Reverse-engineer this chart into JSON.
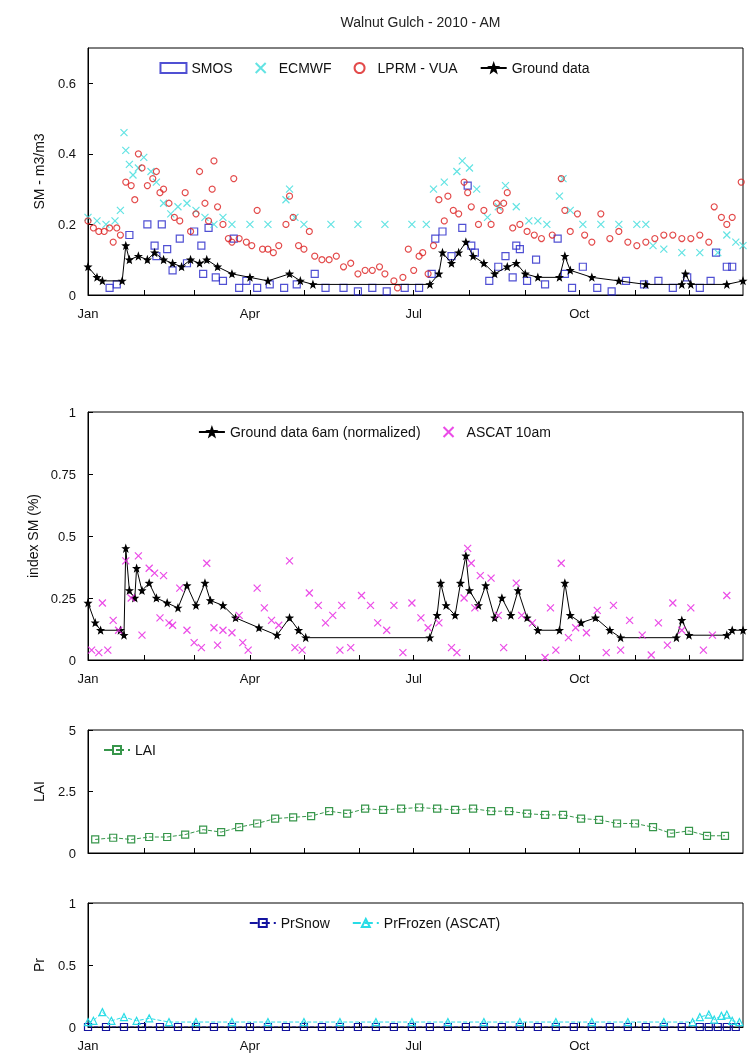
{
  "chart_data": [
    {
      "type": "scatter",
      "title": "Walnut Gulch - 2010 - AM",
      "ylabel": "SM - m3/m3",
      "xlim": [
        "--01-01",
        "--12-31"
      ],
      "xticks": [
        {
          "value": "--01-01",
          "label": "Jan"
        },
        {
          "value": "--02-01",
          "label": null
        },
        {
          "value": "--03-01",
          "label": null
        },
        {
          "value": "--04-01",
          "label": "Apr"
        },
        {
          "value": "--05-01",
          "label": null
        },
        {
          "value": "--06-01",
          "label": null
        },
        {
          "value": "--07-01",
          "label": "Jul"
        },
        {
          "value": "--08-01",
          "label": null
        },
        {
          "value": "--09-01",
          "label": null
        },
        {
          "value": "--10-01",
          "label": "Oct"
        },
        {
          "value": "--11-01",
          "label": null
        },
        {
          "value": "--12-01",
          "label": null
        }
      ],
      "ylim": [
        0,
        0.7
      ],
      "yticks": [
        0,
        0.2,
        0.4,
        0.6
      ],
      "grid": false,
      "legend": "top",
      "series": [
        {
          "name": "SMOS",
          "marker": "square",
          "color": "#2424c8",
          "x": [
            "--01-13",
            "--01-17",
            "--01-24",
            "--02-03",
            "--02-07",
            "--02-08",
            "--02-11",
            "--02-14",
            "--02-17",
            "--02-21",
            "--02-25",
            "--03-01",
            "--03-05",
            "--03-06",
            "--03-09",
            "--03-13",
            "--03-17",
            "--03-23",
            "--03-26",
            "--03-30",
            "--04-05",
            "--04-12",
            "--04-20",
            "--04-27",
            "--05-07",
            "--05-13",
            "--05-23",
            "--05-31",
            "--06-08",
            "--06-16",
            "--06-26",
            "--07-04",
            "--07-11",
            "--07-13",
            "--07-17",
            "--07-22",
            "--07-28",
            "--07-31",
            "--08-02",
            "--08-04",
            "--08-12",
            "--08-17",
            "--08-21",
            "--08-25",
            "--08-27",
            "--08-29",
            "--09-02",
            "--09-07",
            "--09-12",
            "--09-19",
            "--09-23",
            "--09-27",
            "--10-03",
            "--10-11",
            "--10-19",
            "--10-27",
            "--11-06",
            "--11-14",
            "--11-22",
            "--11-30",
            "--12-07",
            "--12-13",
            "--12-16",
            "--12-22",
            "--12-25"
          ],
          "values": [
            0.02,
            0.03,
            0.17,
            0.2,
            0.14,
            0.11,
            0.2,
            0.13,
            0.07,
            0.16,
            0.09,
            0.18,
            0.14,
            0.06,
            0.19,
            0.05,
            0.04,
            0.16,
            0.02,
            0.04,
            0.02,
            0.03,
            0.02,
            0.03,
            0.06,
            0.02,
            0.02,
            0.01,
            0.02,
            0.01,
            0.02,
            0.02,
            0.06,
            0.16,
            0.18,
            0.11,
            0.19,
            0.31,
            0.14,
            0.12,
            0.04,
            0.08,
            0.11,
            0.05,
            0.14,
            0.13,
            0.04,
            0.1,
            0.03,
            0.16,
            0.06,
            0.02,
            0.08,
            0.02,
            0.01,
            0.04,
            0.03,
            0.04,
            0.02,
            0.05,
            0.02,
            0.04,
            0.12,
            0.08,
            0.08
          ]
        },
        {
          "name": "ECMWF",
          "marker": "cross",
          "color": "#3cdcdc",
          "x": [
            "--01-01",
            "--01-06",
            "--01-11",
            "--01-16",
            "--01-19",
            "--01-21",
            "--01-22",
            "--01-24",
            "--01-26",
            "--01-29",
            "--02-01",
            "--02-05",
            "--02-08",
            "--02-12",
            "--02-16",
            "--02-20",
            "--02-25",
            "--03-02",
            "--03-07",
            "--03-12",
            "--03-17",
            "--03-22",
            "--04-01",
            "--04-11",
            "--04-21",
            "--04-23",
            "--04-26",
            "--05-01",
            "--05-16",
            "--05-31",
            "--06-15",
            "--06-30",
            "--07-08",
            "--07-12",
            "--07-18",
            "--07-25",
            "--07-28",
            "--08-01",
            "--08-05",
            "--08-11",
            "--08-17",
            "--08-21",
            "--08-27",
            "--09-03",
            "--09-08",
            "--09-13",
            "--09-20",
            "--09-22",
            "--09-26",
            "--10-03",
            "--10-13",
            "--10-23",
            "--11-02",
            "--11-07",
            "--11-11",
            "--11-17",
            "--11-27",
            "--12-07",
            "--12-17",
            "--12-22",
            "--12-27",
            "--12-31"
          ],
          "values": [
            0.22,
            0.21,
            0.2,
            0.21,
            0.24,
            0.46,
            0.41,
            0.37,
            0.34,
            0.36,
            0.39,
            0.35,
            0.32,
            0.26,
            0.23,
            0.25,
            0.26,
            0.24,
            0.22,
            0.2,
            0.22,
            0.2,
            0.2,
            0.2,
            0.27,
            0.3,
            0.22,
            0.2,
            0.2,
            0.2,
            0.2,
            0.2,
            0.2,
            0.3,
            0.32,
            0.35,
            0.38,
            0.36,
            0.3,
            0.22,
            0.25,
            0.31,
            0.25,
            0.21,
            0.21,
            0.2,
            0.28,
            0.33,
            0.24,
            0.2,
            0.2,
            0.2,
            0.2,
            0.2,
            0.14,
            0.13,
            0.12,
            0.12,
            0.12,
            0.17,
            0.15,
            0.14
          ]
        },
        {
          "name": "LPRM - VUA",
          "marker": "circle",
          "color": "#dc1e1e",
          "x": [
            "--01-01",
            "--01-04",
            "--01-07",
            "--01-10",
            "--01-13",
            "--01-15",
            "--01-17",
            "--01-19",
            "--01-22",
            "--01-25",
            "--01-27",
            "--01-29",
            "--01-31",
            "--02-03",
            "--02-06",
            "--02-08",
            "--02-10",
            "--02-12",
            "--02-15",
            "--02-18",
            "--02-21",
            "--02-24",
            "--02-27",
            "--03-02",
            "--03-04",
            "--03-07",
            "--03-09",
            "--03-11",
            "--03-12",
            "--03-14",
            "--03-17",
            "--03-20",
            "--03-22",
            "--03-23",
            "--03-26",
            "--03-30",
            "--04-02",
            "--04-05",
            "--04-08",
            "--04-11",
            "--04-14",
            "--04-17",
            "--04-21",
            "--04-23",
            "--04-25",
            "--04-28",
            "--05-01",
            "--05-04",
            "--05-07",
            "--05-11",
            "--05-15",
            "--05-19",
            "--05-23",
            "--05-27",
            "--05-31",
            "--06-04",
            "--06-08",
            "--06-12",
            "--06-15",
            "--06-20",
            "--06-22",
            "--06-25",
            "--06-28",
            "--07-01",
            "--07-04",
            "--07-06",
            "--07-09",
            "--07-12",
            "--07-15",
            "--07-18",
            "--07-20",
            "--07-23",
            "--07-26",
            "--07-29",
            "--07-31",
            "--08-02",
            "--08-06",
            "--08-09",
            "--08-13",
            "--08-16",
            "--08-18",
            "--08-20",
            "--08-22",
            "--08-25",
            "--08-29",
            "--09-02",
            "--09-06",
            "--09-10",
            "--09-16",
            "--09-21",
            "--09-23",
            "--09-26",
            "--09-30",
            "--10-04",
            "--10-08",
            "--10-13",
            "--10-18",
            "--10-23",
            "--10-28",
            "--11-02",
            "--11-07",
            "--11-12",
            "--11-17",
            "--11-22",
            "--11-27",
            "--12-02",
            "--12-07",
            "--12-12",
            "--12-15",
            "--12-19",
            "--12-22",
            "--12-25",
            "--12-30"
          ],
          "values": [
            0.21,
            0.19,
            0.18,
            0.18,
            0.19,
            0.15,
            0.19,
            0.17,
            0.32,
            0.31,
            0.27,
            0.4,
            0.36,
            0.31,
            0.33,
            0.35,
            0.29,
            0.3,
            0.26,
            0.22,
            0.21,
            0.29,
            0.18,
            0.23,
            0.35,
            0.26,
            0.21,
            0.3,
            0.38,
            0.25,
            0.2,
            0.16,
            0.15,
            0.33,
            0.16,
            0.15,
            0.14,
            0.24,
            0.13,
            0.13,
            0.12,
            0.14,
            0.2,
            0.28,
            0.22,
            0.14,
            0.13,
            0.18,
            0.11,
            0.1,
            0.1,
            0.11,
            0.08,
            0.09,
            0.06,
            0.07,
            0.07,
            0.08,
            0.06,
            0.04,
            0.02,
            0.05,
            0.13,
            0.07,
            0.11,
            0.12,
            0.06,
            0.14,
            0.27,
            0.21,
            0.28,
            0.24,
            0.23,
            0.32,
            0.29,
            0.25,
            0.2,
            0.24,
            0.2,
            0.26,
            0.24,
            0.26,
            0.29,
            0.19,
            0.2,
            0.18,
            0.17,
            0.16,
            0.17,
            0.33,
            0.24,
            0.18,
            0.23,
            0.17,
            0.15,
            0.23,
            0.16,
            0.18,
            0.15,
            0.14,
            0.15,
            0.16,
            0.17,
            0.17,
            0.16,
            0.16,
            0.17,
            0.15,
            0.25,
            0.22,
            0.2,
            0.22,
            0.32
          ]
        },
        {
          "name": "Ground data",
          "type": "line",
          "marker": "star",
          "line_style": "solid",
          "color": "#000000",
          "x": [
            "--01-01",
            "--01-06",
            "--01-09",
            "--01-20",
            "--01-22",
            "--01-24",
            "--01-29",
            "--02-03",
            "--02-07",
            "--02-12",
            "--02-17",
            "--02-22",
            "--02-27",
            "--03-04",
            "--03-08",
            "--03-14",
            "--03-22",
            "--04-01",
            "--04-11",
            "--04-23",
            "--04-29",
            "--05-06",
            "--07-10",
            "--07-15",
            "--07-17",
            "--07-22",
            "--07-26",
            "--07-30",
            "--08-03",
            "--08-09",
            "--08-15",
            "--08-22",
            "--08-27",
            "--09-01",
            "--09-08",
            "--09-20",
            "--09-23",
            "--09-26",
            "--10-08",
            "--10-23",
            "--11-07",
            "--11-27",
            "--11-29",
            "--12-02",
            "--12-22",
            "--12-31"
          ],
          "values": [
            0.08,
            0.05,
            0.04,
            0.04,
            0.14,
            0.1,
            0.11,
            0.1,
            0.12,
            0.1,
            0.09,
            0.08,
            0.1,
            0.09,
            0.1,
            0.08,
            0.06,
            0.05,
            0.04,
            0.06,
            0.04,
            0.03,
            0.03,
            0.06,
            0.12,
            0.09,
            0.12,
            0.15,
            0.11,
            0.09,
            0.06,
            0.08,
            0.09,
            0.06,
            0.05,
            0.05,
            0.11,
            0.07,
            0.05,
            0.04,
            0.03,
            0.03,
            0.06,
            0.03,
            0.03,
            0.04
          ]
        }
      ]
    },
    {
      "type": "line",
      "ylabel": "index SM (%)",
      "xlim": [
        "--01-01",
        "--12-31"
      ],
      "xticks": [
        {
          "value": "--01-01",
          "label": "Jan"
        },
        {
          "value": "--02-01",
          "label": null
        },
        {
          "value": "--03-01",
          "label": null
        },
        {
          "value": "--04-01",
          "label": "Apr"
        },
        {
          "value": "--05-01",
          "label": null
        },
        {
          "value": "--06-01",
          "label": null
        },
        {
          "value": "--07-01",
          "label": "Jul"
        },
        {
          "value": "--08-01",
          "label": null
        },
        {
          "value": "--09-01",
          "label": null
        },
        {
          "value": "--10-01",
          "label": "Oct"
        },
        {
          "value": "--11-01",
          "label": null
        },
        {
          "value": "--12-01",
          "label": null
        }
      ],
      "ylim": [
        0,
        1
      ],
      "yticks": [
        0,
        0.25,
        0.5,
        0.75,
        1
      ],
      "grid": false,
      "legend": "top",
      "series": [
        {
          "name": "Ground data 6am (normalized)",
          "marker": "star",
          "line_style": "solid",
          "color": "#000000",
          "x": [
            "--01-01",
            "--01-05",
            "--01-08",
            "--01-19",
            "--01-21",
            "--01-22",
            "--01-24",
            "--01-27",
            "--01-28",
            "--01-31",
            "--02-04",
            "--02-08",
            "--02-14",
            "--02-20",
            "--02-25",
            "--03-02",
            "--03-07",
            "--03-10",
            "--03-17",
            "--03-24",
            "--04-06",
            "--04-16",
            "--04-23",
            "--04-28",
            "--05-02",
            "--07-10",
            "--07-14",
            "--07-16",
            "--07-19",
            "--07-24",
            "--07-27",
            "--07-30",
            "--08-01",
            "--08-06",
            "--08-10",
            "--08-15",
            "--08-19",
            "--08-24",
            "--08-28",
            "--09-02",
            "--09-08",
            "--09-20",
            "--09-23",
            "--09-26",
            "--10-02",
            "--10-10",
            "--10-18",
            "--10-24",
            "--11-24",
            "--11-27",
            "--12-01",
            "--12-22",
            "--12-25",
            "--12-31"
          ],
          "values": [
            0.23,
            0.15,
            0.12,
            0.12,
            0.1,
            0.45,
            0.28,
            0.25,
            0.37,
            0.28,
            0.31,
            0.25,
            0.23,
            0.21,
            0.3,
            0.22,
            0.31,
            0.24,
            0.22,
            0.17,
            0.13,
            0.1,
            0.17,
            0.12,
            0.09,
            0.09,
            0.18,
            0.31,
            0.22,
            0.18,
            0.31,
            0.42,
            0.28,
            0.22,
            0.3,
            0.17,
            0.25,
            0.18,
            0.28,
            0.17,
            0.12,
            0.12,
            0.31,
            0.18,
            0.15,
            0.17,
            0.12,
            0.09,
            0.09,
            0.16,
            0.1,
            0.1,
            0.12,
            0.12
          ]
        },
        {
          "name": "ASCAT 10am",
          "type": "scatter",
          "marker": "cross",
          "color": "#e61ee1",
          "x": [
            "--01-03",
            "--01-07",
            "--01-09",
            "--01-12",
            "--01-15",
            "--01-18",
            "--01-22",
            "--01-25",
            "--01-29",
            "--01-31",
            "--02-04",
            "--02-07",
            "--02-10",
            "--02-12",
            "--02-15",
            "--02-17",
            "--02-21",
            "--02-25",
            "--03-01",
            "--03-05",
            "--03-08",
            "--03-12",
            "--03-14",
            "--03-17",
            "--03-22",
            "--03-26",
            "--03-28",
            "--03-31",
            "--04-05",
            "--04-09",
            "--04-13",
            "--04-17",
            "--04-23",
            "--04-26",
            "--04-30",
            "--05-04",
            "--05-09",
            "--05-13",
            "--05-17",
            "--05-21",
            "--05-22",
            "--05-27",
            "--06-02",
            "--06-07",
            "--06-11",
            "--06-16",
            "--06-20",
            "--06-25",
            "--06-30",
            "--07-05",
            "--07-09",
            "--07-15",
            "--07-22",
            "--07-25",
            "--07-29",
            "--07-31",
            "--08-02",
            "--08-04",
            "--08-07",
            "--08-13",
            "--08-17",
            "--08-20",
            "--08-27",
            "--08-30",
            "--09-05",
            "--09-12",
            "--09-15",
            "--09-18",
            "--09-21",
            "--09-25",
            "--09-29",
            "--10-05",
            "--10-11",
            "--10-16",
            "--10-20",
            "--10-24",
            "--10-29",
            "--11-05",
            "--11-10",
            "--11-14",
            "--11-19",
            "--11-22",
            "--11-27",
            "--12-02",
            "--12-09",
            "--12-14",
            "--12-22"
          ],
          "values": [
            0.04,
            0.03,
            0.23,
            0.04,
            0.16,
            0.12,
            0.4,
            0.25,
            0.42,
            0.1,
            0.37,
            0.35,
            0.17,
            0.34,
            0.15,
            0.14,
            0.29,
            0.12,
            0.07,
            0.05,
            0.39,
            0.13,
            0.06,
            0.12,
            0.11,
            0.18,
            0.07,
            0.04,
            0.29,
            0.21,
            0.16,
            0.14,
            0.4,
            0.05,
            0.04,
            0.27,
            0.22,
            0.15,
            0.18,
            0.04,
            0.22,
            0.05,
            0.26,
            0.22,
            0.15,
            0.12,
            0.22,
            0.03,
            0.23,
            0.17,
            0.13,
            0.15,
            0.05,
            0.03,
            0.25,
            0.45,
            0.39,
            0.21,
            0.34,
            0.33,
            0.18,
            0.05,
            0.31,
            0.18,
            0.15,
            0.01,
            0.21,
            0.04,
            0.39,
            0.09,
            0.13,
            0.11,
            0.2,
            0.03,
            0.22,
            0.04,
            0.16,
            0.1,
            0.02,
            0.15,
            0.06,
            0.23,
            0.12,
            0.21,
            0.04,
            0.1,
            0.26
          ]
        }
      ]
    },
    {
      "type": "line",
      "ylabel": "LAI",
      "xlim": [
        "--01-01",
        "--12-31"
      ],
      "xticks": [
        {
          "value": "--01-01",
          "label": null
        },
        {
          "value": "--02-01",
          "label": null
        },
        {
          "value": "--03-01",
          "label": null
        },
        {
          "value": "--04-01",
          "label": null
        },
        {
          "value": "--05-01",
          "label": null
        },
        {
          "value": "--06-01",
          "label": null
        },
        {
          "value": "--07-01",
          "label": null
        },
        {
          "value": "--08-01",
          "label": null
        },
        {
          "value": "--09-01",
          "label": null
        },
        {
          "value": "--10-01",
          "label": null
        },
        {
          "value": "--11-01",
          "label": null
        },
        {
          "value": "--12-01",
          "label": null
        }
      ],
      "ylim": [
        0,
        5
      ],
      "yticks": [
        0,
        2.5,
        5
      ],
      "grid": false,
      "legend": "top left",
      "tick_labels": "y",
      "series": [
        {
          "name": "LAI",
          "marker": "square",
          "line_style": "dashed",
          "color": "#37964b",
          "x": [
            "--01-05",
            "--01-15",
            "--01-25",
            "--02-04",
            "--02-14",
            "--02-24",
            "--03-06",
            "--03-16",
            "--03-26",
            "--04-05",
            "--04-15",
            "--04-25",
            "--05-05",
            "--05-15",
            "--05-25",
            "--06-04",
            "--06-14",
            "--06-24",
            "--07-04",
            "--07-14",
            "--07-24",
            "--08-03",
            "--08-13",
            "--08-23",
            "--09-02",
            "--09-12",
            "--09-22",
            "--10-02",
            "--10-12",
            "--10-22",
            "--11-01",
            "--11-11",
            "--11-21",
            "--12-01",
            "--12-11",
            "--12-21"
          ],
          "values": [
            0.55,
            0.62,
            0.55,
            0.65,
            0.65,
            0.75,
            0.95,
            0.85,
            1.05,
            1.2,
            1.4,
            1.45,
            1.5,
            1.7,
            1.6,
            1.8,
            1.75,
            1.8,
            1.85,
            1.8,
            1.75,
            1.8,
            1.7,
            1.7,
            1.6,
            1.55,
            1.55,
            1.4,
            1.35,
            1.2,
            1.2,
            1.05,
            0.8,
            0.9,
            0.7,
            0.7
          ]
        }
      ]
    },
    {
      "type": "line",
      "ylabel": "Pr",
      "xlim": [
        "--01-01",
        "--12-31"
      ],
      "xticks": [
        {
          "value": "--01-01",
          "label": "Jan"
        },
        {
          "value": "--02-01",
          "label": null
        },
        {
          "value": "--03-01",
          "label": null
        },
        {
          "value": "--04-01",
          "label": "Apr"
        },
        {
          "value": "--05-01",
          "label": null
        },
        {
          "value": "--06-01",
          "label": null
        },
        {
          "value": "--07-01",
          "label": "Jul"
        },
        {
          "value": "--08-01",
          "label": null
        },
        {
          "value": "--09-01",
          "label": null
        },
        {
          "value": "--10-01",
          "label": "Oct"
        },
        {
          "value": "--11-01",
          "label": null
        },
        {
          "value": "--12-01",
          "label": null
        }
      ],
      "ylim": [
        0,
        1
      ],
      "yticks": [
        0,
        0.5,
        1
      ],
      "grid": false,
      "legend": "top",
      "series": [
        {
          "name": "PrSnow",
          "marker": "square",
          "line_style": "dashed",
          "color": "#1414a0",
          "x": [
            "--01-01",
            "--01-11",
            "--01-21",
            "--01-31",
            "--02-10",
            "--02-20",
            "--03-02",
            "--03-12",
            "--03-22",
            "--04-01",
            "--04-11",
            "--04-21",
            "--05-01",
            "--05-11",
            "--05-21",
            "--05-31",
            "--06-10",
            "--06-20",
            "--06-30",
            "--07-10",
            "--07-20",
            "--07-30",
            "--08-09",
            "--08-19",
            "--08-29",
            "--09-08",
            "--09-18",
            "--09-28",
            "--10-08",
            "--10-18",
            "--10-28",
            "--11-07",
            "--11-17",
            "--11-27",
            "--12-07",
            "--12-12",
            "--12-17",
            "--12-22",
            "--12-27"
          ],
          "values": [
            0,
            0,
            0,
            0,
            0,
            0,
            0,
            0,
            0,
            0,
            0,
            0,
            0,
            0,
            0,
            0,
            0,
            0,
            0,
            0,
            0,
            0,
            0,
            0,
            0,
            0,
            0,
            0,
            0,
            0,
            0,
            0,
            0,
            0,
            0,
            0,
            0,
            0,
            0
          ]
        },
        {
          "name": "PrFrozen (ASCAT)",
          "marker": "triangle",
          "line_style": "dashed",
          "color": "#28dce6",
          "x": [
            "--01-01",
            "--01-04",
            "--01-09",
            "--01-14",
            "--01-21",
            "--01-28",
            "--02-04",
            "--02-15",
            "--03-02",
            "--03-22",
            "--04-11",
            "--05-01",
            "--05-21",
            "--06-10",
            "--06-30",
            "--07-20",
            "--08-09",
            "--08-29",
            "--09-18",
            "--10-08",
            "--10-28",
            "--11-17",
            "--12-03",
            "--12-07",
            "--12-12",
            "--12-15",
            "--12-19",
            "--12-22",
            "--12-25",
            "--12-29"
          ],
          "values": [
            0.04,
            0.05,
            0.12,
            0.05,
            0.08,
            0.05,
            0.07,
            0.04,
            0.04,
            0.04,
            0.04,
            0.04,
            0.04,
            0.04,
            0.04,
            0.04,
            0.04,
            0.04,
            0.04,
            0.04,
            0.04,
            0.04,
            0.04,
            0.08,
            0.1,
            0.06,
            0.09,
            0.1,
            0.05,
            0.04
          ]
        }
      ]
    }
  ]
}
